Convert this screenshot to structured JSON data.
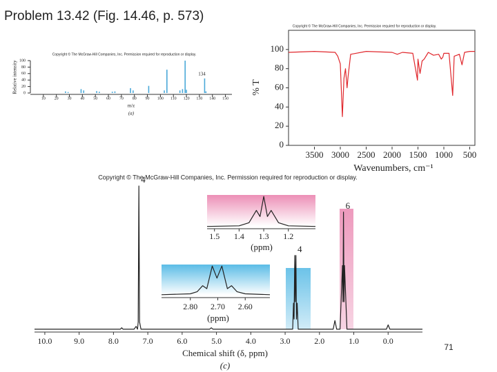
{
  "slide": {
    "title": "Problem 13.42 (Fig. 14.46, p. 573)",
    "page_number": "71"
  },
  "chart_data": [
    {
      "type": "bar",
      "title": "Copyright © The McGraw-Hill Companies, Inc. Permission required for reproduction or display.",
      "xlabel": "m/z",
      "ylabel": "Relative intensity",
      "caption": "(a)",
      "color": "#4aa8d8",
      "x": [
        27,
        29,
        39,
        41,
        51,
        53,
        63,
        65,
        77,
        79,
        91,
        103,
        105,
        115,
        117,
        119,
        120,
        134,
        135
      ],
      "values": [
        5,
        3,
        12,
        8,
        6,
        4,
        4,
        5,
        15,
        8,
        22,
        8,
        72,
        8,
        12,
        100,
        10,
        45,
        5
      ],
      "annotations": [
        {
          "text": "134",
          "x": 134
        }
      ],
      "xlim": [
        0,
        155
      ],
      "xticks": [
        10,
        20,
        30,
        40,
        50,
        60,
        70,
        80,
        90,
        100,
        110,
        120,
        130,
        140,
        150
      ],
      "ylim": [
        0,
        100
      ],
      "yticks": [
        0,
        20,
        40,
        60,
        80,
        100
      ]
    },
    {
      "type": "line",
      "title": "Copyright © The McGraw-Hill Companies, Inc. Permission required for reproduction or display.",
      "xlabel": "Wavenumbers, cm⁻¹",
      "ylabel": "% T",
      "color": "#e0262b",
      "x": [
        4000,
        3500,
        3100,
        3050,
        3000,
        2960,
        2930,
        2900,
        2870,
        2850,
        2800,
        2500,
        2000,
        1900,
        1800,
        1600,
        1510,
        1500,
        1460,
        1420,
        1380,
        1300,
        1200,
        1100,
        1050,
        1020,
        1000,
        900,
        830,
        800,
        700,
        650,
        600,
        500,
        400
      ],
      "values": [
        97,
        98,
        97,
        93,
        85,
        30,
        70,
        80,
        60,
        72,
        95,
        98,
        97,
        95,
        97,
        96,
        68,
        90,
        75,
        88,
        90,
        97,
        94,
        95,
        90,
        92,
        96,
        96,
        52,
        93,
        95,
        84,
        97,
        98,
        98
      ],
      "xlim": [
        4000,
        400
      ],
      "xticks": [
        3500,
        3000,
        2500,
        2000,
        1500,
        1000,
        500
      ],
      "ylim": [
        0,
        120
      ],
      "yticks": [
        0,
        20,
        40,
        60,
        80,
        100
      ]
    },
    {
      "type": "line",
      "title": "Copyright © The McGraw-Hill Companies, Inc. Permission required for reproduction or display.",
      "xlabel": "Chemical shift (δ, ppm)",
      "caption": "(c)",
      "color": "#222222",
      "x": [
        10.3,
        7.8,
        7.76,
        7.72,
        7.4,
        7.34,
        7.3,
        7.28,
        7.26,
        7.24,
        7.2,
        5.2,
        5.15,
        5.1,
        3.0,
        2.78,
        2.755,
        2.74,
        2.72,
        2.705,
        2.685,
        2.67,
        2.65,
        2.62,
        1.6,
        1.55,
        1.5,
        1.4,
        1.33,
        1.315,
        1.3,
        1.285,
        1.27,
        1.2,
        0.05,
        0.0,
        -0.05,
        -1.0
      ],
      "values": [
        1,
        1,
        2,
        1,
        1,
        3,
        1,
        6,
        100,
        6,
        1,
        1,
        2,
        1,
        1,
        1,
        19,
        8,
        52,
        20,
        52,
        8,
        19,
        1,
        1,
        7,
        1,
        1,
        45,
        20,
        82,
        20,
        45,
        1,
        1,
        4,
        1,
        1
      ],
      "annotations": [
        {
          "text": "4",
          "x": 7.26
        },
        {
          "text": "4",
          "x": 2.7
        },
        {
          "text": "6",
          "x": 1.3
        }
      ],
      "xlim": [
        10.3,
        -1.0
      ],
      "xticks": [
        {
          "value": 10,
          "label": "10.0"
        },
        {
          "value": 9,
          "label": "9.0"
        },
        {
          "value": 8,
          "label": "8.0"
        },
        {
          "value": 7,
          "label": "7.0"
        },
        {
          "value": 6,
          "label": "6.0"
        },
        {
          "value": 5,
          "label": "5.0"
        },
        {
          "value": 4,
          "label": "4.0"
        },
        {
          "value": 3,
          "label": "3.0"
        },
        {
          "value": 2,
          "label": "2.0"
        },
        {
          "value": 1,
          "label": "1.0"
        },
        {
          "value": 0,
          "label": "0.0"
        }
      ],
      "ylim": [
        0,
        100
      ]
    },
    {
      "type": "line",
      "xlabel": "(ppm)",
      "color": "#222222",
      "x": [
        1.53,
        1.4,
        1.36,
        1.33,
        1.315,
        1.3,
        1.285,
        1.27,
        1.24,
        1.2,
        1.09
      ],
      "values": [
        3,
        5,
        15,
        55,
        35,
        100,
        35,
        55,
        15,
        5,
        3
      ],
      "xlim": [
        1.53,
        1.09
      ],
      "xticks": [
        1.5,
        1.4,
        1.3,
        1.2
      ],
      "ylim": [
        0,
        105
      ]
    },
    {
      "type": "line",
      "xlabel": "(ppm)",
      "color": "#222222",
      "x": [
        2.905,
        2.8,
        2.775,
        2.755,
        2.74,
        2.72,
        2.703,
        2.685,
        2.665,
        2.65,
        2.63,
        2.6,
        2.51
      ],
      "values": [
        5,
        8,
        15,
        35,
        25,
        100,
        60,
        100,
        25,
        35,
        15,
        8,
        5
      ],
      "xlim": [
        2.905,
        2.51
      ],
      "xticks": [
        {
          "value": 2.8,
          "label": "2.80"
        },
        {
          "value": 2.7,
          "label": "2.70"
        },
        {
          "value": 2.6,
          "label": "2.60"
        }
      ],
      "ylim": [
        0,
        105
      ]
    }
  ]
}
